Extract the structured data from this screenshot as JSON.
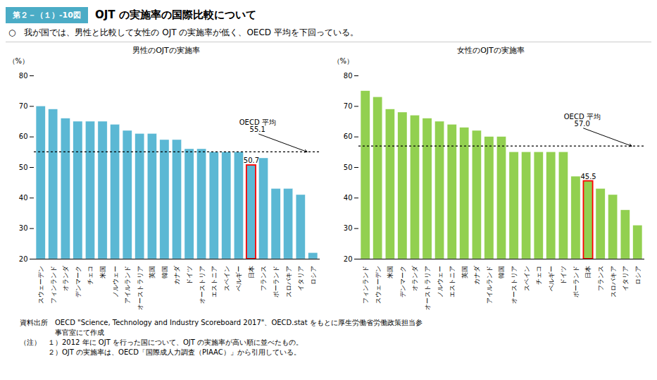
{
  "figure_label": "第２－（１）-10図",
  "figure_label_color": "#4BACC6",
  "figure_label_text_color": "#FFFFFF",
  "title": "OJT の実施率の国際比較について",
  "subtitle": "○　我が国では、男性と比較して女性の OJT の実施率が低く、OECD 平均を下回っている。",
  "notes": [
    "資料出所　OECD \"Science, Technology and Industry Scoreboard 2017\"、OECD.stat をもとに厚生労働省労働政策担当参",
    "　　　　　事官室にて作成",
    "（注）　１）2012 年に OJT を行った国について、OJT の実施率が高い順に並べたもの。",
    "　　　　２）OJT の実施率は、OECD「国際成人力調査（PIAAC）」から引用している。"
  ],
  "background_color": "#FFFFFF",
  "chart_data": [
    {
      "type": "bar",
      "title": "男性のOJTの実施率",
      "ylabel": "（%）",
      "categories": [
        "スウェーデン",
        "フィンランド",
        "オランダ",
        "デンマーク",
        "チェコ",
        "米国",
        "ノルウェー",
        "アイルランド",
        "オーストラリア",
        "英国",
        "韓国",
        "カナダ",
        "ドイツ",
        "オーストリア",
        "エストニア",
        "スペイン",
        "ベルギー",
        "日本",
        "フランス",
        "ポーランド",
        "スロバキア",
        "イタリア",
        "ロシア"
      ],
      "values": [
        70,
        69,
        66,
        65,
        65,
        65,
        64,
        62,
        61,
        61,
        59,
        59,
        56,
        56,
        55,
        55,
        55,
        50.7,
        53,
        43,
        43,
        41,
        22
      ],
      "color": "#5BB8D4",
      "ylim": [
        20,
        80
      ],
      "yticks": [
        20,
        30,
        40,
        50,
        60,
        70,
        80
      ],
      "grid": false,
      "highlight": {
        "category": "日本",
        "value": 50.7,
        "label": "50.7",
        "color": "#FF0000"
      },
      "reference_line": {
        "value": 55.1,
        "label": "OECD 平均",
        "value_label": "55.1"
      }
    },
    {
      "type": "bar",
      "title": "女性のOJTの実施率",
      "ylabel": "（%）",
      "categories": [
        "フィンランド",
        "スウェーデン",
        "米国",
        "デンマーク",
        "オランダ",
        "オーストラリア",
        "ノルウェー",
        "エストニア",
        "英国",
        "カナダ",
        "アイルランド",
        "韓国",
        "オーストリア",
        "スペイン",
        "チェコ",
        "ベルギー",
        "ドイツ",
        "ポーランド",
        "日本",
        "フランス",
        "スロバキア",
        "イタリア",
        "ロシア"
      ],
      "values": [
        75,
        73,
        69,
        68,
        67,
        66,
        65,
        64,
        63,
        62,
        60,
        60,
        55,
        55,
        55,
        55,
        55,
        47,
        45.5,
        43,
        41,
        36,
        31
      ],
      "color": "#92D050",
      "ylim": [
        20,
        80
      ],
      "yticks": [
        20,
        30,
        40,
        50,
        60,
        70,
        80
      ],
      "grid": false,
      "highlight": {
        "category": "日本",
        "value": 45.5,
        "label": "45.5",
        "color": "#FF0000"
      },
      "reference_line": {
        "value": 57.0,
        "label": "OECD 平均",
        "value_label": "57.0"
      }
    }
  ]
}
